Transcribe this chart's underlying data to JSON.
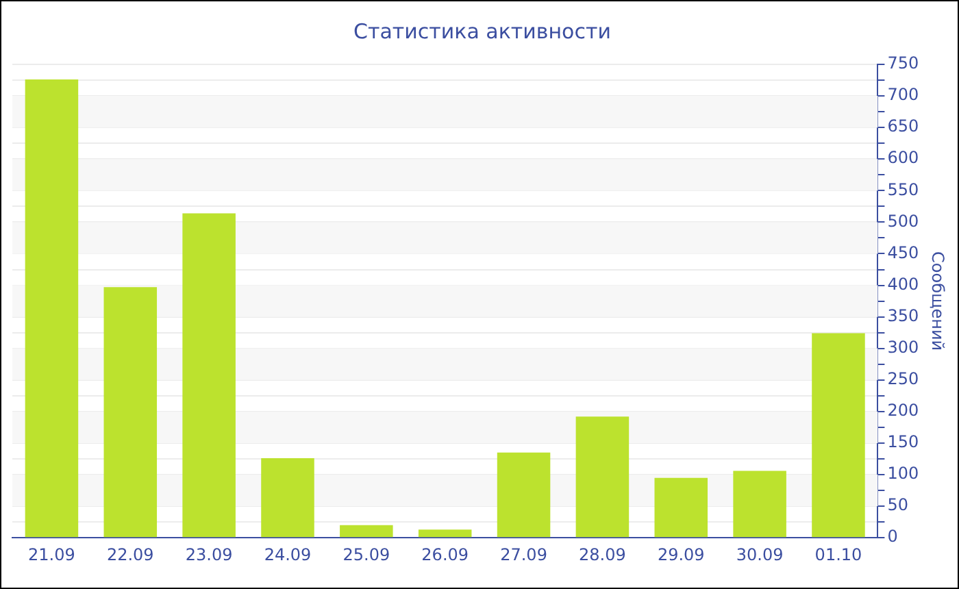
{
  "chart_data": {
    "type": "bar",
    "title": "Статистика активности",
    "y2label": "Сообщений",
    "categories": [
      "21.09",
      "22.09",
      "23.09",
      "24.09",
      "25.09",
      "26.09",
      "27.09",
      "28.09",
      "29.09",
      "30.09",
      "01.10"
    ],
    "series": [
      {
        "color": "#bce22e",
        "axis": "y2",
        "values": [
          726,
          397,
          514,
          126,
          20,
          13,
          135,
          192,
          95,
          106,
          324
        ]
      }
    ],
    "y2lim": [
      0,
      750
    ],
    "y2ticks": [
      0,
      {
        "value": 25,
        "label": null
      },
      50,
      {
        "value": 75,
        "label": null
      },
      100,
      {
        "value": 125,
        "label": null
      },
      150,
      {
        "value": 175,
        "label": null
      },
      200,
      {
        "value": 225,
        "label": null
      },
      250,
      {
        "value": 275,
        "label": null
      },
      300,
      {
        "value": 325,
        "label": null
      },
      350,
      {
        "value": 375,
        "label": null
      },
      400,
      {
        "value": 425,
        "label": null
      },
      450,
      {
        "value": 475,
        "label": null
      },
      500,
      {
        "value": 525,
        "label": null
      },
      550,
      {
        "value": 575,
        "label": null
      },
      600,
      {
        "value": 625,
        "label": null
      },
      650,
      {
        "value": 675,
        "label": null
      },
      700,
      {
        "value": 725,
        "label": null
      },
      750
    ],
    "grid": true,
    "legend": false
  }
}
